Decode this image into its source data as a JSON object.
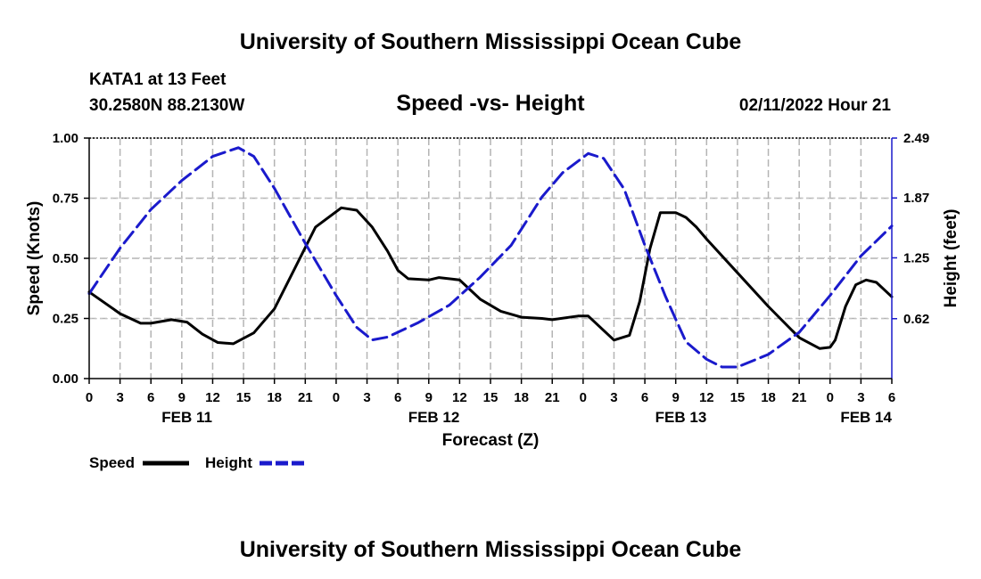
{
  "header": {
    "title": "University of Southern Mississippi Ocean Cube",
    "station": "KATA1 at 13 Feet",
    "coords": "30.2580N  88.2130W",
    "chart_title": "Speed -vs- Height",
    "timestamp": "02/11/2022 Hour 21"
  },
  "footer": {
    "title": "University of Southern Mississippi Ocean Cube"
  },
  "colors": {
    "speed": "#000000",
    "height": "#1a1acc",
    "grid": "#b4b4b4"
  },
  "chart_data": {
    "type": "line",
    "title": "Speed -vs- Height",
    "xlabel": "Forecast (Z)",
    "ylabel": "Speed (Knots)",
    "y2label": "Height (feet)",
    "x_unit": "hours since FEB 11 00Z",
    "xlim": [
      0,
      78
    ],
    "ylim": [
      0,
      1.0
    ],
    "y2lim": [
      0,
      2.49
    ],
    "x_ticks": [
      0,
      3,
      6,
      9,
      12,
      15,
      18,
      21,
      24,
      27,
      30,
      33,
      36,
      39,
      42,
      45,
      48,
      51,
      54,
      57,
      60,
      63,
      66,
      69,
      72,
      75,
      78
    ],
    "x_tick_labels": [
      "0",
      "3",
      "6",
      "9",
      "12",
      "15",
      "18",
      "21",
      "0",
      "3",
      "6",
      "9",
      "12",
      "15",
      "18",
      "21",
      "0",
      "3",
      "6",
      "9",
      "12",
      "15",
      "18",
      "21",
      "0",
      "3",
      "6"
    ],
    "date_labels": [
      {
        "x": 9.5,
        "label": "FEB 11"
      },
      {
        "x": 33.5,
        "label": "FEB 12"
      },
      {
        "x": 57.5,
        "label": "FEB 13"
      },
      {
        "x": 75.5,
        "label": "FEB 14"
      }
    ],
    "y_ticks": [
      0,
      0.25,
      0.5,
      0.75,
      1.0
    ],
    "y_tick_labels": [
      "0.00",
      "0.25",
      "0.50",
      "0.75",
      "1.00"
    ],
    "y2_ticks": [
      0.62,
      1.25,
      1.87,
      2.49
    ],
    "y2_tick_labels": [
      "0.62",
      "1.25",
      "1.87",
      "2.49"
    ],
    "grid": true,
    "series": [
      {
        "name": "Speed",
        "axis": "left",
        "style": "solid",
        "x": [
          0,
          3,
          5,
          6,
          8,
          9.5,
          11,
          12.5,
          14,
          16,
          18,
          20,
          22,
          24.5,
          26,
          27.5,
          29,
          30,
          31,
          33,
          34,
          36,
          38,
          40,
          42,
          44,
          45,
          47.5,
          48.5,
          51,
          52.5,
          53.5,
          54.5,
          55.5,
          57,
          58,
          59,
          60,
          63,
          66,
          69,
          71,
          72,
          72.5,
          73.5,
          74.5,
          75.5,
          76.5,
          78
        ],
        "values": [
          0.36,
          0.27,
          0.23,
          0.23,
          0.245,
          0.235,
          0.185,
          0.15,
          0.145,
          0.19,
          0.29,
          0.46,
          0.63,
          0.71,
          0.7,
          0.63,
          0.53,
          0.45,
          0.415,
          0.41,
          0.42,
          0.41,
          0.33,
          0.28,
          0.255,
          0.25,
          0.245,
          0.26,
          0.26,
          0.16,
          0.18,
          0.32,
          0.54,
          0.69,
          0.69,
          0.67,
          0.63,
          0.58,
          0.44,
          0.3,
          0.17,
          0.125,
          0.13,
          0.16,
          0.3,
          0.39,
          0.41,
          0.4,
          0.34
        ]
      },
      {
        "name": "Height",
        "axis": "right",
        "style": "dashed",
        "x": [
          0,
          3,
          6,
          9,
          12,
          14.5,
          16,
          18,
          21,
          24,
          26,
          27.5,
          29,
          32,
          35,
          38,
          41,
          44,
          46,
          48.5,
          50,
          52,
          54,
          56,
          58,
          60,
          61.5,
          63,
          66,
          69,
          72,
          75,
          78
        ],
        "values": [
          0.88,
          1.35,
          1.75,
          2.05,
          2.3,
          2.39,
          2.3,
          1.97,
          1.4,
          0.86,
          0.53,
          0.4,
          0.43,
          0.58,
          0.76,
          1.05,
          1.38,
          1.88,
          2.13,
          2.33,
          2.28,
          1.96,
          1.38,
          0.85,
          0.38,
          0.2,
          0.12,
          0.12,
          0.25,
          0.48,
          0.86,
          1.27,
          1.58
        ]
      }
    ],
    "legend": {
      "position": "bottom-left",
      "entries": [
        "Speed",
        "Height"
      ]
    }
  }
}
